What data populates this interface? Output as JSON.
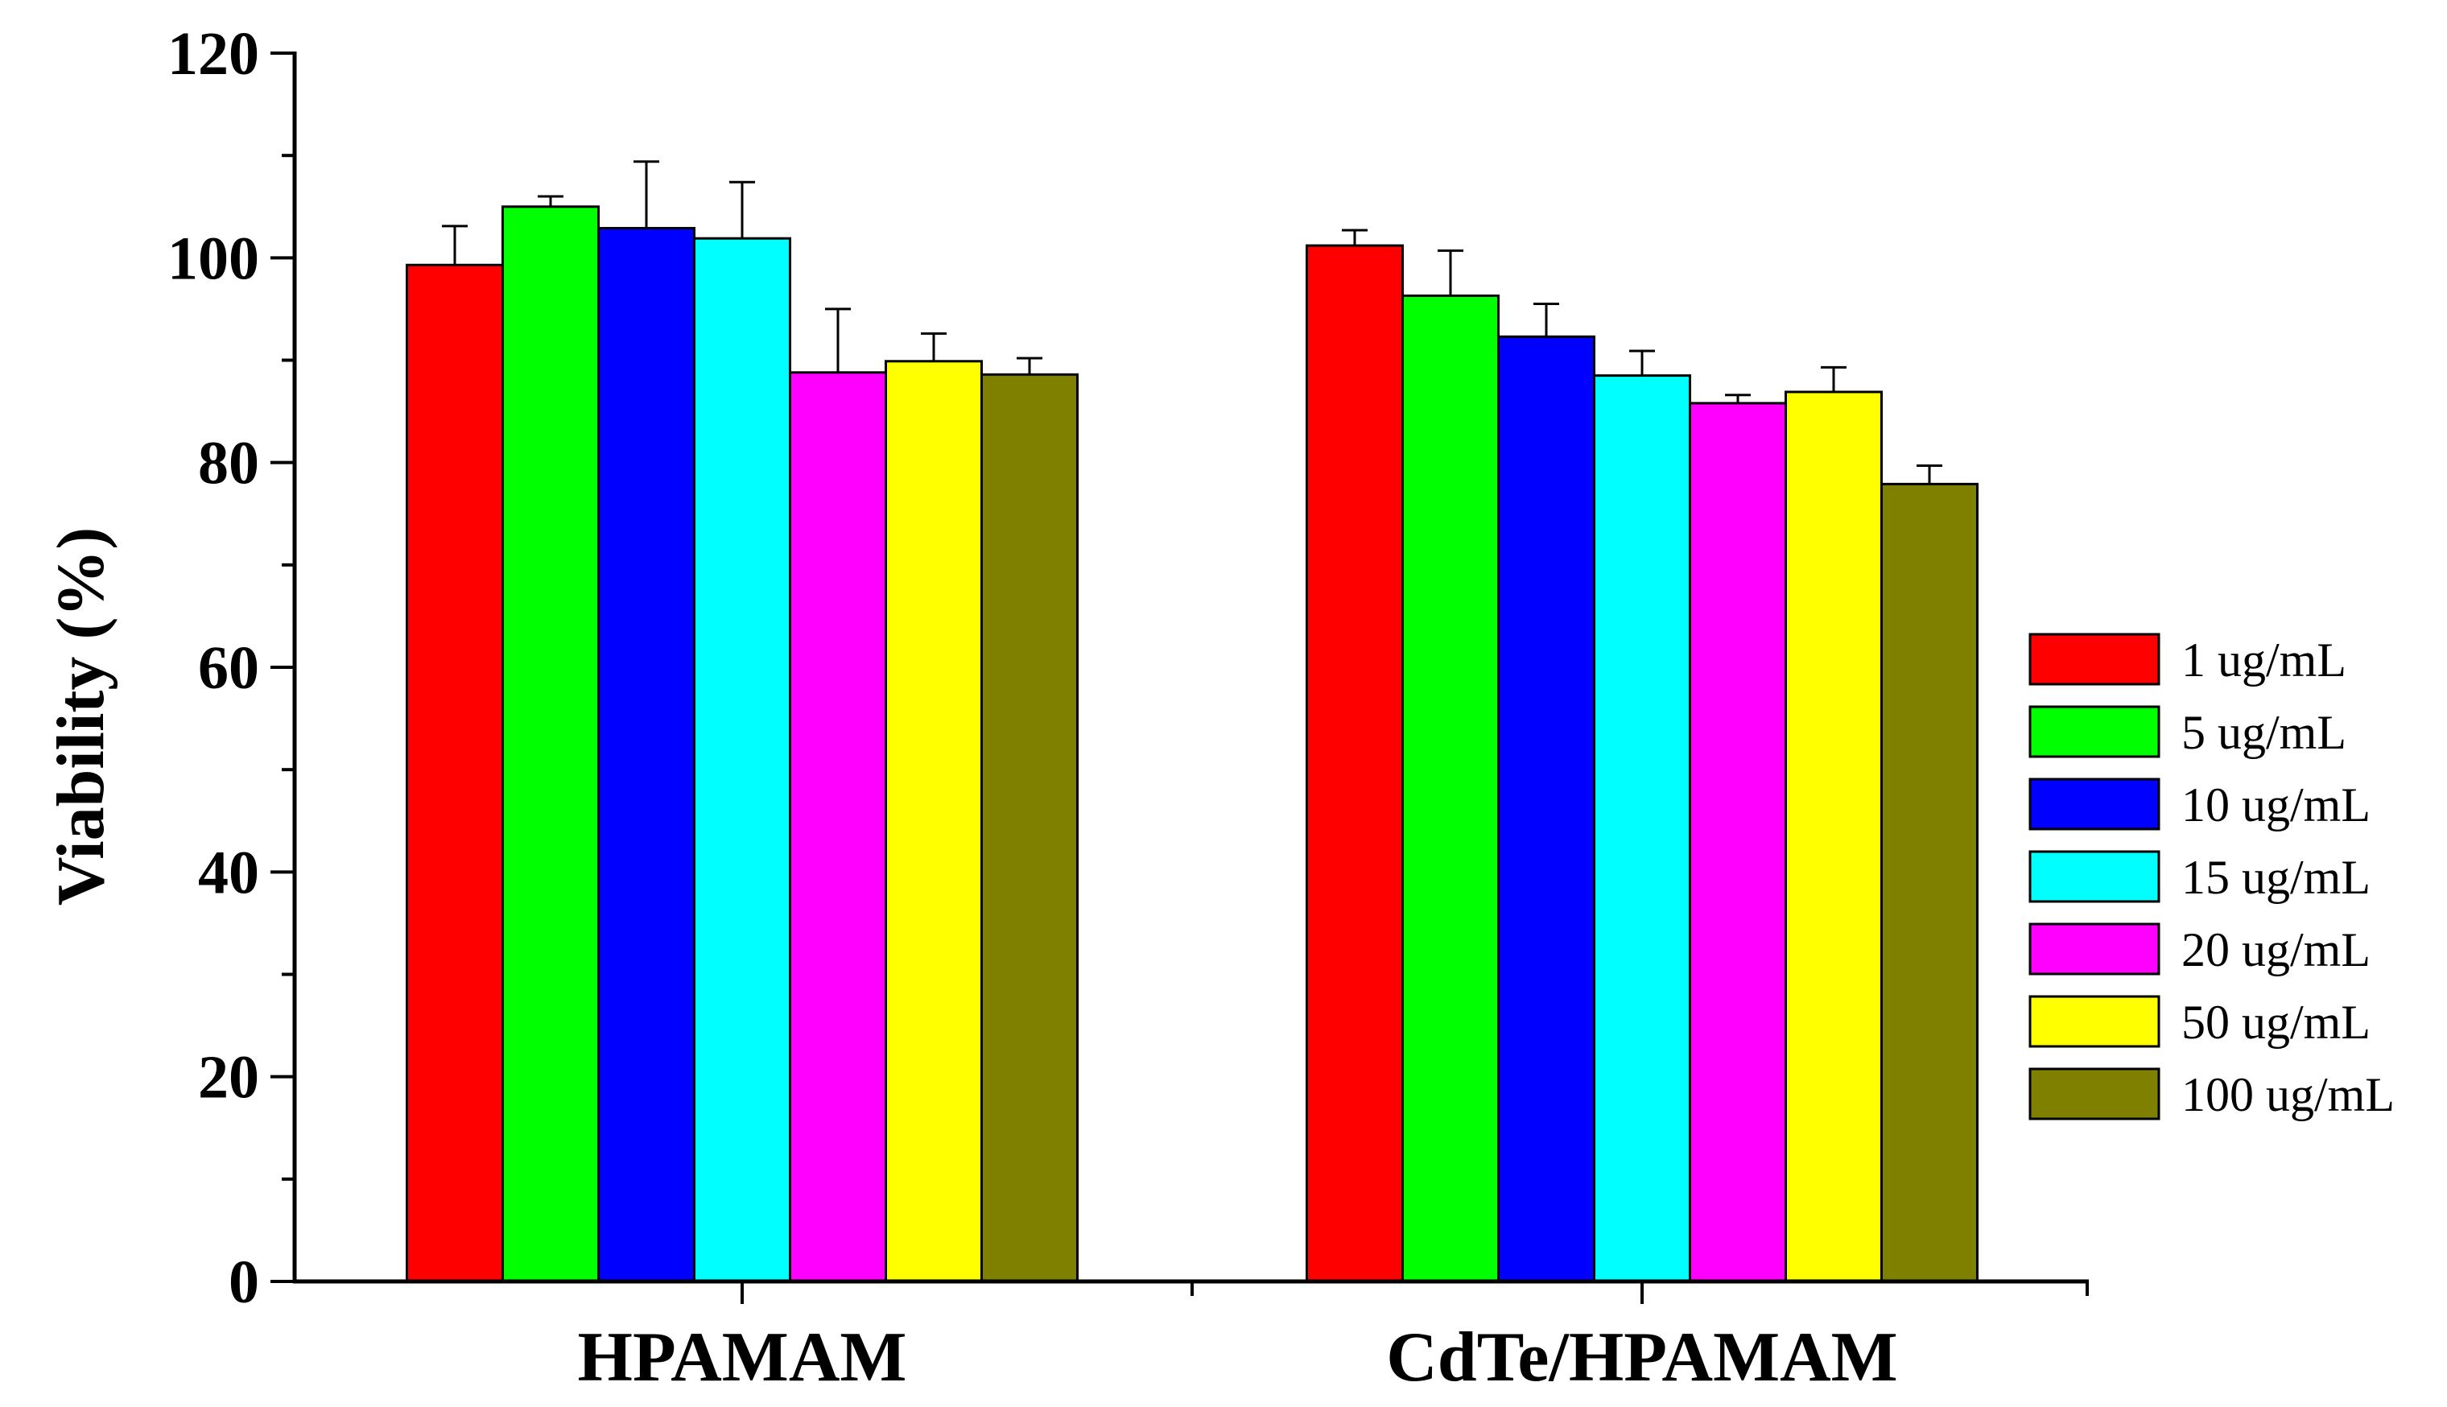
{
  "chart_data": {
    "type": "bar",
    "title": "",
    "xlabel": "",
    "ylabel": "Viability (%)",
    "ylim": [
      0,
      120
    ],
    "yticks": [
      0,
      20,
      40,
      60,
      80,
      100,
      120
    ],
    "categories": [
      "HPAMAM",
      "CdTe/HPAMAM"
    ],
    "legend_position": "right",
    "series": [
      {
        "name": "1 ug/mL",
        "color": "#ff0000",
        "values": [
          99.3,
          101.2
        ],
        "errors": [
          3.8,
          1.5
        ]
      },
      {
        "name": "5 ug/mL",
        "color": "#00ff00",
        "values": [
          105.0,
          96.3
        ],
        "errors": [
          1.0,
          4.4
        ]
      },
      {
        "name": "10 ug/mL",
        "color": "#0000ff",
        "values": [
          102.9,
          92.3
        ],
        "errors": [
          6.5,
          3.2
        ]
      },
      {
        "name": "15 ug/mL",
        "color": "#00ffff",
        "values": [
          101.9,
          88.5
        ],
        "errors": [
          5.5,
          2.4
        ]
      },
      {
        "name": "20 ug/mL",
        "color": "#ff00ff",
        "values": [
          88.8,
          85.8
        ],
        "errors": [
          6.2,
          0.8
        ]
      },
      {
        "name": "50 ug/mL",
        "color": "#ffff00",
        "values": [
          89.9,
          86.9
        ],
        "errors": [
          2.7,
          2.4
        ]
      },
      {
        "name": "100 ug/mL",
        "color": "#808000",
        "values": [
          88.6,
          77.9
        ],
        "errors": [
          1.6,
          1.8
        ]
      }
    ]
  }
}
